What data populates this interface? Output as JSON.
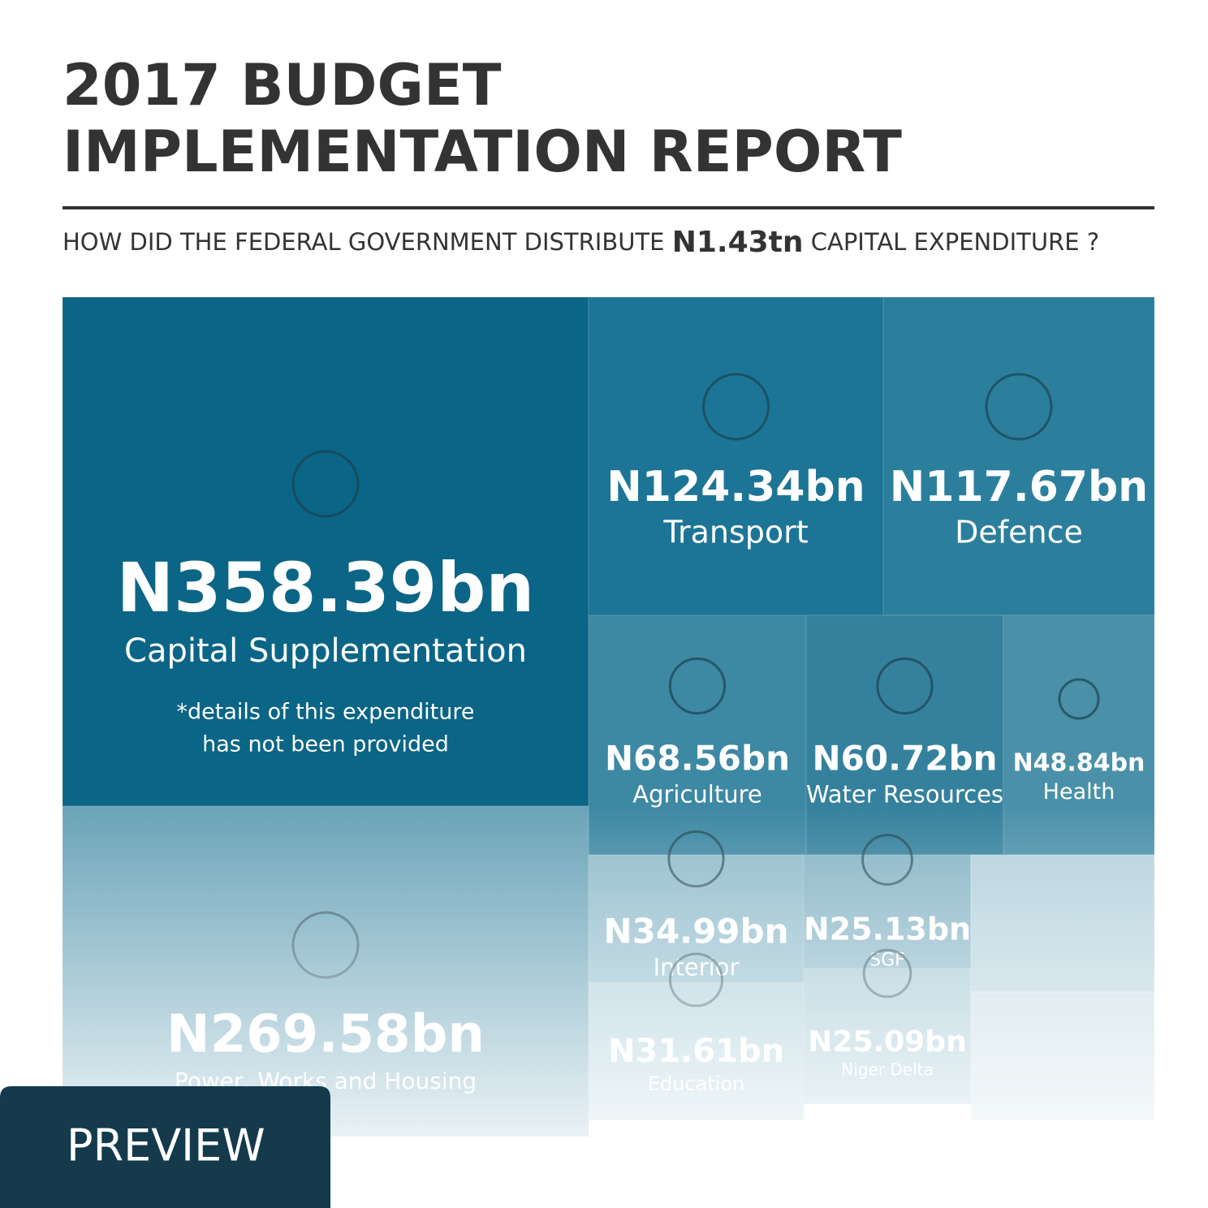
{
  "header": {
    "title_lines": [
      "2017 BUDGET",
      "IMPLEMENTATION REPORT"
    ],
    "question": [
      "HOW DID THE FEDERAL GOVERNMENT DISTRIBUTE",
      "N1.43tn",
      "CAPITAL EXPENDITURE ?"
    ]
  },
  "tiles": [
    {
      "amount": "N358.39bn",
      "name": "Capital Supplementation",
      "note": [
        "*details of this expenditure",
        "has not been provided"
      ]
    },
    {
      "amount": "N124.34bn",
      "name": "Transport"
    },
    {
      "amount": "N117.67bn",
      "name": "Defence"
    },
    {
      "amount": "N68.56bn",
      "name": "Agriculture"
    },
    {
      "amount": "N60.72bn",
      "name": "Water Resources"
    },
    {
      "amount": "N48.84bn",
      "name": "Health"
    },
    {
      "amount": "N269.58bn",
      "name": "Power, Works and Housing"
    },
    {
      "amount": "N34.99bn",
      "name": "Interior"
    },
    {
      "amount": "N25.13bn",
      "name": "SGF"
    },
    {
      "amount": "N31.61bn",
      "name": "Education"
    },
    {
      "amount": "N25.09bn",
      "name": "Niger Delta"
    }
  ],
  "badge": "PREVIEW"
}
